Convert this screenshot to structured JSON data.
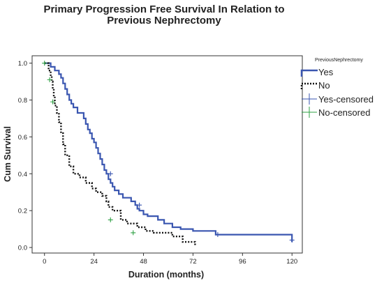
{
  "chart_data": {
    "type": "line",
    "title_lines": [
      "Primary Progression Free Survival In Relation to",
      "Previous Nephrectomy"
    ],
    "xlabel": "Duration (months)",
    "ylabel": "Cum Survival",
    "xlim": [
      -6,
      125
    ],
    "ylim": [
      -0.03,
      1.04
    ],
    "x_ticks": [
      0,
      24,
      48,
      72,
      96,
      120
    ],
    "y_ticks": [
      0.0,
      0.2,
      0.4,
      0.6,
      0.8,
      1.0
    ],
    "y_tick_labels": [
      "0.0",
      "0.2",
      "0.4",
      "0.6",
      "0.8",
      "1.0"
    ],
    "grid": false,
    "legend": {
      "title": "PreviousNephrectomy",
      "position": "right",
      "entries": [
        "Yes",
        "No",
        "Yes-censored",
        "No-censored"
      ]
    },
    "colors": {
      "yes": "#3a56b0",
      "no": "#111111",
      "no_censored": "#2ea043"
    },
    "series": [
      {
        "name": "Yes",
        "style": "solid",
        "x": [
          0,
          3,
          5,
          7,
          8,
          9,
          10,
          11,
          12,
          13,
          14,
          16,
          19,
          20,
          21,
          22,
          23,
          24,
          25,
          26,
          27,
          28,
          29,
          30,
          31,
          32,
          33,
          34,
          36,
          38,
          42,
          44,
          45,
          46,
          48,
          50,
          55,
          58,
          62,
          66,
          72,
          83,
          120
        ],
        "y": [
          1.0,
          0.98,
          0.96,
          0.94,
          0.92,
          0.89,
          0.86,
          0.83,
          0.8,
          0.78,
          0.76,
          0.73,
          0.7,
          0.67,
          0.64,
          0.62,
          0.59,
          0.57,
          0.54,
          0.51,
          0.48,
          0.45,
          0.42,
          0.4,
          0.37,
          0.35,
          0.33,
          0.31,
          0.29,
          0.27,
          0.25,
          0.23,
          0.21,
          0.2,
          0.18,
          0.17,
          0.15,
          0.13,
          0.11,
          0.1,
          0.09,
          0.07,
          0.03
        ],
        "censored": [
          {
            "x": 32,
            "y": 0.4
          },
          {
            "x": 46,
            "y": 0.23
          },
          {
            "x": 84,
            "y": 0.07
          },
          {
            "x": 120,
            "y": 0.04
          }
        ]
      },
      {
        "name": "No",
        "style": "dotted",
        "x": [
          0,
          2,
          3,
          3.5,
          4,
          4.5,
          5,
          6,
          7,
          8,
          9,
          10,
          12,
          14,
          17,
          20,
          23,
          25,
          28,
          30,
          31,
          33,
          37,
          40,
          45,
          49,
          53,
          55,
          62,
          67,
          73
        ],
        "y": [
          1.0,
          0.96,
          0.93,
          0.9,
          0.86,
          0.82,
          0.77,
          0.73,
          0.68,
          0.62,
          0.56,
          0.5,
          0.44,
          0.4,
          0.38,
          0.35,
          0.32,
          0.3,
          0.28,
          0.25,
          0.22,
          0.2,
          0.15,
          0.13,
          0.11,
          0.09,
          0.08,
          0.08,
          0.06,
          0.03,
          0.01
        ],
        "censored": [
          {
            "x": 0,
            "y": 1.0
          },
          {
            "x": 2.5,
            "y": 0.91
          },
          {
            "x": 4,
            "y": 0.79
          },
          {
            "x": 32,
            "y": 0.15
          },
          {
            "x": 43,
            "y": 0.08
          }
        ]
      }
    ]
  }
}
